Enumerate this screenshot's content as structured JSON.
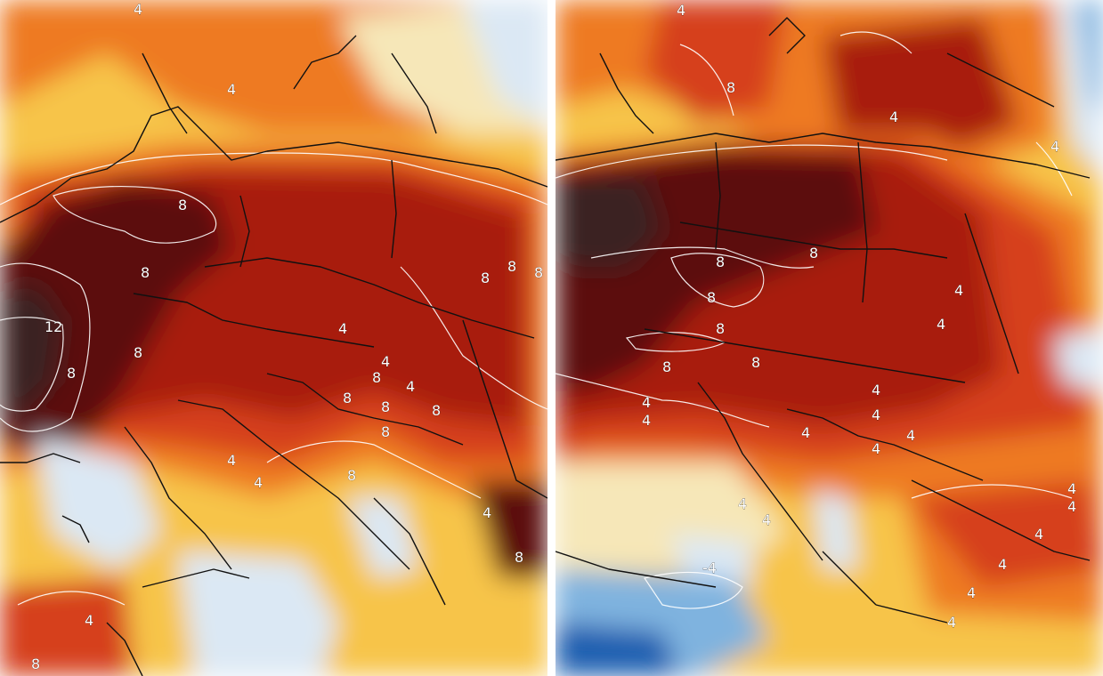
{
  "colors": {
    "extreme": "#3a2424",
    "very_hot": "#5c0f0c",
    "hot": "#a81e0e",
    "warm": "#d6401a",
    "mild": "#ee7a22",
    "neutral": "#f7c44a",
    "pale": "#f6e7b8",
    "cool": "#dbe8f4",
    "cold": "#7fb3df",
    "very_cold": "#1f5fb0",
    "contour": "#ffffff",
    "borders": "#111111"
  },
  "panels": [
    {
      "id": "left",
      "labels": [
        "4",
        "4",
        "8",
        "8",
        "8",
        "12",
        "8",
        "8",
        "8",
        "8",
        "4",
        "4",
        "8",
        "8",
        "8",
        "8",
        "8",
        "8",
        "4",
        "4",
        "4",
        "4",
        "4",
        "8",
        "8"
      ]
    },
    {
      "id": "right",
      "labels": [
        "4",
        "8",
        "4",
        "4",
        "8",
        "8",
        "8",
        "8",
        "8",
        "8",
        "4",
        "4",
        "4",
        "4",
        "4",
        "4",
        "4",
        "4",
        "4",
        "4",
        "4",
        "4",
        "4",
        "4",
        "-4",
        "4",
        "4",
        "4"
      ]
    }
  ]
}
